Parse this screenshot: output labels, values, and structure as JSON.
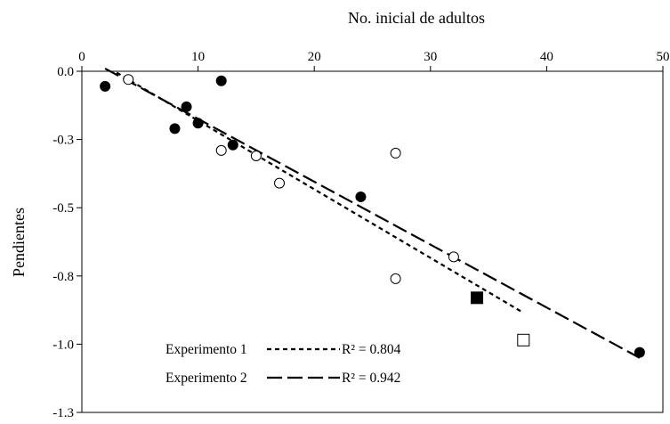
{
  "chart_data": {
    "type": "scatter",
    "title": "",
    "xlabel": "No. inicial de adultos",
    "ylabel": "Pendientes",
    "xlim": [
      0,
      50
    ],
    "ylim": [
      -1.25,
      0
    ],
    "x_ticks": [
      0,
      10,
      20,
      30,
      40,
      50
    ],
    "y_ticks": [
      0,
      -0.25,
      -0.5,
      -0.75,
      -1.0,
      -1.25
    ],
    "x_tick_labels": [
      "0",
      "10",
      "20",
      "30",
      "40",
      "50"
    ],
    "y_tick_labels": [
      "0.0",
      "-0.3",
      "-0.5",
      "-0.8",
      "-1.0",
      "-1.3"
    ],
    "x_axis_position": "top",
    "grid": false,
    "series": [
      {
        "marker": "filled-circle",
        "points": [
          {
            "x": 2,
            "y": -0.055
          },
          {
            "x": 8,
            "y": -0.21
          },
          {
            "x": 9,
            "y": -0.13
          },
          {
            "x": 10,
            "y": -0.19
          },
          {
            "x": 12,
            "y": -0.035
          },
          {
            "x": 13,
            "y": -0.27
          },
          {
            "x": 24,
            "y": -0.46
          },
          {
            "x": 48,
            "y": -1.03
          }
        ]
      },
      {
        "marker": "open-circle",
        "points": [
          {
            "x": 4,
            "y": -0.03
          },
          {
            "x": 12,
            "y": -0.29
          },
          {
            "x": 15,
            "y": -0.31
          },
          {
            "x": 17,
            "y": -0.41
          },
          {
            "x": 27,
            "y": -0.3
          },
          {
            "x": 27,
            "y": -0.76
          },
          {
            "x": 32,
            "y": -0.68
          }
        ]
      },
      {
        "marker": "filled-square",
        "points": [
          {
            "x": 34,
            "y": -0.83
          }
        ]
      },
      {
        "marker": "open-square",
        "points": [
          {
            "x": 38,
            "y": -0.985
          }
        ]
      }
    ],
    "fit_lines": [
      {
        "style": "short-dash",
        "x": [
          3,
          38
        ],
        "y": [
          -0.005,
          -0.885
        ]
      },
      {
        "style": "long-dash",
        "x": [
          2,
          48
        ],
        "y": [
          0.01,
          -1.05
        ]
      }
    ],
    "legend": {
      "position": "bottom-left",
      "entries": [
        {
          "label": "Experimento 1",
          "style": "short-dash",
          "r2": "R² = 0.804"
        },
        {
          "label": "Experimento 2",
          "style": "long-dash",
          "r2": "R² = 0.942"
        }
      ]
    }
  }
}
